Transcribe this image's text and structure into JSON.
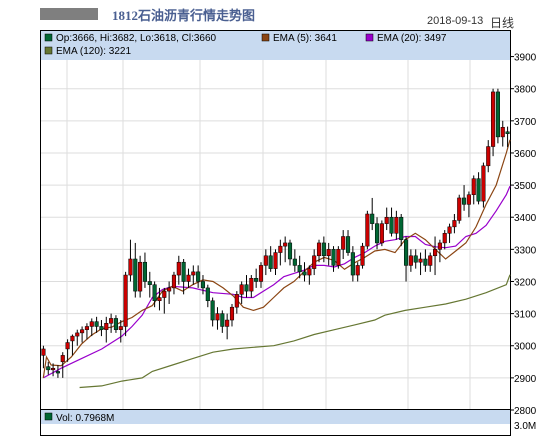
{
  "header": {
    "title": "1812石油沥青行情走势图",
    "date": "2018-09-13",
    "period": "日线"
  },
  "colors": {
    "up": "#cc0000",
    "down": "#006633",
    "ema5": "#8b4513",
    "ema20": "#9900cc",
    "ema120": "#667733",
    "legend_bg": "#c8daf0",
    "grid": "#dddddd"
  },
  "legend": {
    "ohlc": "Op:3666, Hi:3682, Lo:3618, Cl:3660",
    "ema5": "EMA (5): 3641",
    "ema20": "EMA (20): 3497",
    "ema120": "EMA (120): 3221"
  },
  "volume": {
    "label": "Vol:  0.7968M",
    "axis_label": "3.0M"
  },
  "chart_data": {
    "type": "candlestick",
    "title": "1812石油沥青行情走势图",
    "ylim": [
      2800,
      3950
    ],
    "yticks": [
      2800,
      2900,
      3000,
      3100,
      3200,
      3300,
      3400,
      3500,
      3600,
      3700,
      3800,
      3900
    ],
    "ohlc": [
      [
        2970,
        3000,
        2930,
        2990
      ],
      [
        2935,
        2950,
        2910,
        2925
      ],
      [
        2925,
        2945,
        2905,
        2930
      ],
      [
        2920,
        2940,
        2900,
        2915
      ],
      [
        2950,
        2980,
        2900,
        2970
      ],
      [
        2990,
        3020,
        2950,
        3010
      ],
      [
        3015,
        3035,
        2970,
        3030
      ],
      [
        3030,
        3050,
        3000,
        3040
      ],
      [
        3040,
        3060,
        3010,
        3050
      ],
      [
        3050,
        3070,
        3020,
        3060
      ],
      [
        3060,
        3085,
        3030,
        3075
      ],
      [
        3075,
        3090,
        3040,
        3060
      ],
      [
        3060,
        3080,
        3030,
        3050
      ],
      [
        3050,
        3090,
        3010,
        3070
      ],
      [
        3070,
        3100,
        3040,
        3085
      ],
      [
        3085,
        3095,
        3040,
        3050
      ],
      [
        3050,
        3080,
        3010,
        3060
      ],
      [
        3060,
        3230,
        3030,
        3220
      ],
      [
        3220,
        3330,
        3200,
        3270
      ],
      [
        3270,
        3320,
        3150,
        3170
      ],
      [
        3170,
        3280,
        3150,
        3260
      ],
      [
        3260,
        3290,
        3180,
        3200
      ],
      [
        3200,
        3230,
        3150,
        3190
      ],
      [
        3190,
        3200,
        3120,
        3140
      ],
      [
        3140,
        3180,
        3110,
        3150
      ],
      [
        3150,
        3180,
        3100,
        3170
      ],
      [
        3170,
        3200,
        3130,
        3180
      ],
      [
        3180,
        3230,
        3160,
        3220
      ],
      [
        3220,
        3280,
        3190,
        3260
      ],
      [
        3260,
        3270,
        3160,
        3200
      ],
      [
        3200,
        3240,
        3180,
        3220
      ],
      [
        3220,
        3250,
        3190,
        3230
      ],
      [
        3230,
        3250,
        3180,
        3200
      ],
      [
        3200,
        3220,
        3160,
        3180
      ],
      [
        3180,
        3190,
        3120,
        3140
      ],
      [
        3140,
        3150,
        3060,
        3080
      ],
      [
        3080,
        3120,
        3050,
        3100
      ],
      [
        3100,
        3110,
        3040,
        3060
      ],
      [
        3060,
        3100,
        3020,
        3080
      ],
      [
        3080,
        3130,
        3060,
        3120
      ],
      [
        3120,
        3170,
        3100,
        3160
      ],
      [
        3160,
        3200,
        3130,
        3190
      ],
      [
        3190,
        3220,
        3150,
        3170
      ],
      [
        3170,
        3220,
        3150,
        3210
      ],
      [
        3210,
        3240,
        3180,
        3200
      ],
      [
        3200,
        3260,
        3180,
        3250
      ],
      [
        3250,
        3300,
        3220,
        3280
      ],
      [
        3280,
        3310,
        3230,
        3240
      ],
      [
        3240,
        3300,
        3220,
        3290
      ],
      [
        3290,
        3330,
        3250,
        3310
      ],
      [
        3310,
        3340,
        3260,
        3320
      ],
      [
        3320,
        3330,
        3250,
        3270
      ],
      [
        3270,
        3300,
        3230,
        3250
      ],
      [
        3250,
        3280,
        3210,
        3230
      ],
      [
        3230,
        3260,
        3200,
        3220
      ],
      [
        3220,
        3250,
        3190,
        3240
      ],
      [
        3240,
        3300,
        3220,
        3280
      ],
      [
        3280,
        3330,
        3260,
        3320
      ],
      [
        3320,
        3340,
        3260,
        3280
      ],
      [
        3280,
        3320,
        3250,
        3300
      ],
      [
        3300,
        3310,
        3230,
        3250
      ],
      [
        3250,
        3310,
        3240,
        3300
      ],
      [
        3300,
        3360,
        3270,
        3340
      ],
      [
        3340,
        3360,
        3280,
        3290
      ],
      [
        3290,
        3310,
        3200,
        3220
      ],
      [
        3220,
        3260,
        3200,
        3250
      ],
      [
        3250,
        3320,
        3240,
        3310
      ],
      [
        3310,
        3420,
        3300,
        3410
      ],
      [
        3410,
        3460,
        3360,
        3380
      ],
      [
        3380,
        3400,
        3300,
        3320
      ],
      [
        3320,
        3390,
        3310,
        3380
      ],
      [
        3380,
        3430,
        3360,
        3400
      ],
      [
        3400,
        3430,
        3340,
        3350
      ],
      [
        3350,
        3420,
        3330,
        3400
      ],
      [
        3400,
        3410,
        3310,
        3330
      ],
      [
        3330,
        3340,
        3200,
        3250
      ],
      [
        3250,
        3300,
        3230,
        3280
      ],
      [
        3280,
        3300,
        3240,
        3260
      ],
      [
        3260,
        3290,
        3220,
        3270
      ],
      [
        3270,
        3300,
        3230,
        3250
      ],
      [
        3250,
        3290,
        3230,
        3280
      ],
      [
        3280,
        3340,
        3220,
        3300
      ],
      [
        3300,
        3330,
        3260,
        3320
      ],
      [
        3320,
        3360,
        3300,
        3350
      ],
      [
        3350,
        3380,
        3320,
        3370
      ],
      [
        3370,
        3410,
        3350,
        3390
      ],
      [
        3390,
        3470,
        3380,
        3460
      ],
      [
        3460,
        3500,
        3420,
        3440
      ],
      [
        3440,
        3480,
        3400,
        3470
      ],
      [
        3470,
        3530,
        3440,
        3520
      ],
      [
        3520,
        3540,
        3440,
        3450
      ],
      [
        3450,
        3570,
        3430,
        3560
      ],
      [
        3560,
        3640,
        3540,
        3620
      ],
      [
        3620,
        3800,
        3590,
        3790
      ],
      [
        3790,
        3800,
        3630,
        3650
      ],
      [
        3650,
        3700,
        3620,
        3680
      ],
      [
        3666,
        3682,
        3618,
        3660
      ]
    ],
    "ema5_points": [
      [
        2900,
        2.5
      ],
      [
        2965,
        6
      ],
      [
        2940,
        11
      ],
      [
        2938,
        22
      ],
      [
        2965,
        33
      ],
      [
        3005,
        44
      ],
      [
        3033,
        55
      ],
      [
        3053,
        66
      ],
      [
        3058,
        77
      ],
      [
        3075,
        88
      ],
      [
        3088,
        99
      ],
      [
        3110,
        110
      ],
      [
        3125,
        121
      ],
      [
        3170,
        132
      ],
      [
        3185,
        143
      ],
      [
        3170,
        154
      ],
      [
        3190,
        165
      ],
      [
        3205,
        176
      ],
      [
        3200,
        187
      ],
      [
        3180,
        198
      ],
      [
        3155,
        209
      ],
      [
        3120,
        220
      ],
      [
        3110,
        231
      ],
      [
        3120,
        242
      ],
      [
        3150,
        253
      ],
      [
        3180,
        264
      ],
      [
        3200,
        275
      ],
      [
        3230,
        286
      ],
      [
        3260,
        297
      ],
      [
        3275,
        308
      ],
      [
        3265,
        319
      ],
      [
        3238,
        330
      ],
      [
        3258,
        341
      ],
      [
        3275,
        352
      ],
      [
        3295,
        363
      ],
      [
        3300,
        374
      ],
      [
        3290,
        385
      ],
      [
        3330,
        396
      ],
      [
        3350,
        407
      ],
      [
        3330,
        418
      ],
      [
        3300,
        429
      ],
      [
        3270,
        440
      ],
      [
        3295,
        451
      ],
      [
        3320,
        462
      ],
      [
        3370,
        473
      ],
      [
        3440,
        484
      ],
      [
        3500,
        495
      ],
      [
        3600,
        506
      ],
      [
        3641,
        510
      ]
    ],
    "ema20_points": [
      [
        2900,
        2.5
      ],
      [
        2930,
        22
      ],
      [
        2960,
        44
      ],
      [
        2990,
        66
      ],
      [
        3030,
        88
      ],
      [
        3060,
        99
      ],
      [
        3095,
        110
      ],
      [
        3150,
        121
      ],
      [
        3175,
        132
      ],
      [
        3185,
        143
      ],
      [
        3180,
        165
      ],
      [
        3165,
        187
      ],
      [
        3160,
        209
      ],
      [
        3150,
        220
      ],
      [
        3150,
        231
      ],
      [
        3170,
        242
      ],
      [
        3190,
        253
      ],
      [
        3215,
        264
      ],
      [
        3235,
        286
      ],
      [
        3250,
        297
      ],
      [
        3250,
        308
      ],
      [
        3245,
        319
      ],
      [
        3255,
        330
      ],
      [
        3275,
        341
      ],
      [
        3290,
        352
      ],
      [
        3310,
        363
      ],
      [
        3325,
        374
      ],
      [
        3330,
        385
      ],
      [
        3340,
        396
      ],
      [
        3340,
        407
      ],
      [
        3315,
        418
      ],
      [
        3308,
        429
      ],
      [
        3305,
        440
      ],
      [
        3310,
        451
      ],
      [
        3340,
        462
      ],
      [
        3350,
        473
      ],
      [
        3375,
        484
      ],
      [
        3420,
        495
      ],
      [
        3470,
        506
      ],
      [
        3497,
        510
      ]
    ],
    "ema120_points": [
      [
        2870,
        42
      ],
      [
        2875,
        66
      ],
      [
        2890,
        88
      ],
      [
        2900,
        110
      ],
      [
        2920,
        121
      ],
      [
        2940,
        143
      ],
      [
        2960,
        165
      ],
      [
        2980,
        187
      ],
      [
        2990,
        209
      ],
      [
        2995,
        231
      ],
      [
        3000,
        253
      ],
      [
        3015,
        275
      ],
      [
        3035,
        297
      ],
      [
        3050,
        319
      ],
      [
        3065,
        341
      ],
      [
        3080,
        363
      ],
      [
        3095,
        374
      ],
      [
        3110,
        396
      ],
      [
        3120,
        418
      ],
      [
        3130,
        440
      ],
      [
        3145,
        462
      ],
      [
        3165,
        484
      ],
      [
        3190,
        506
      ],
      [
        3221,
        510
      ]
    ]
  }
}
